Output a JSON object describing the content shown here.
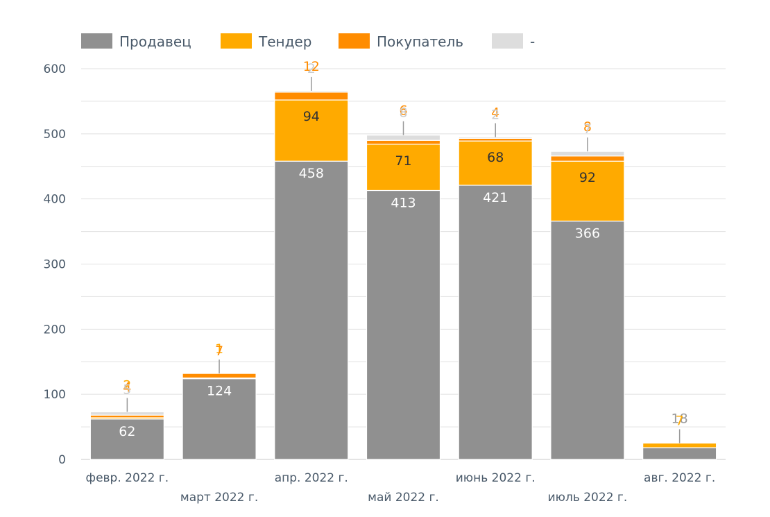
{
  "chart_data": {
    "type": "bar",
    "stacked": true,
    "categories": [
      "февр. 2022 г.",
      "март 2022 г.",
      "апр. 2022 г.",
      "май 2022 г.",
      "июнь 2022 г.",
      "июль 2022 г.",
      "авг. 2022 г."
    ],
    "series": [
      {
        "name": "Продавец",
        "color": "#909090",
        "values": [
          62,
          124,
          458,
          413,
          421,
          366,
          18
        ]
      },
      {
        "name": "Тендер",
        "color": "#FFAA00",
        "values": [
          2,
          1,
          94,
          71,
          68,
          92,
          7
        ]
      },
      {
        "name": "Покупатель",
        "color": "#FF8C00",
        "values": [
          4,
          7,
          12,
          6,
          4,
          8,
          0
        ]
      },
      {
        "name": "-",
        "color": "#DDDDDD",
        "values": [
          5,
          0,
          2,
          8,
          2,
          7,
          0
        ]
      }
    ],
    "ylim": [
      0,
      600
    ],
    "yticks": [
      0,
      100,
      200,
      300,
      400,
      500,
      600
    ],
    "legend_position": "top-left",
    "grid": true
  }
}
